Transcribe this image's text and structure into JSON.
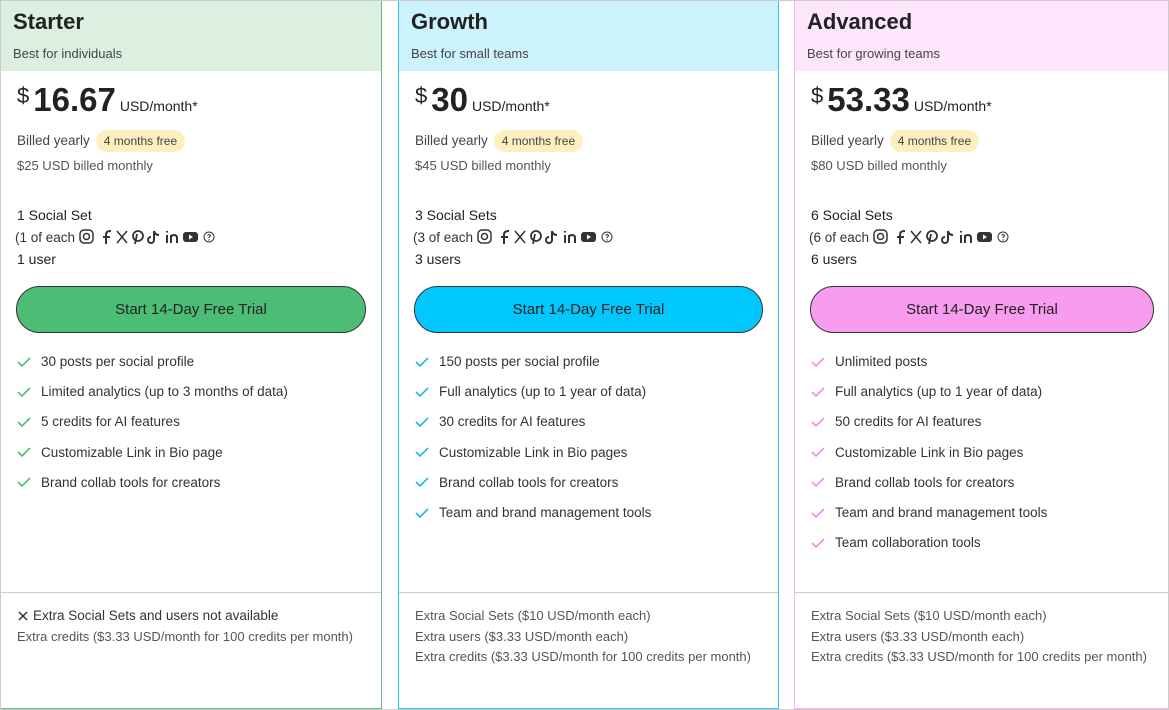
{
  "plans": [
    {
      "name": "Starter",
      "tagline": "Best for individuals",
      "currency": "$",
      "price": "16.67",
      "unit": "USD/month*",
      "billed": "Billed yearly",
      "badge": "4 months free",
      "monthly": "$25 USD billed monthly",
      "sets": "1 Social Set",
      "each": "(1 of each",
      "users": "1 user",
      "button": "Start 14-Day Free Trial",
      "features": [
        "30 posts per social profile",
        "Limited analytics (up to 3 months of data)",
        "5 credits for AI features",
        "Customizable Link in Bio page",
        "Brand collab tools for creators"
      ],
      "extras": [
        "Extra Social Sets and users not available",
        "Extra credits ($3.33 USD/month for 100 credits per month)"
      ]
    },
    {
      "name": "Growth",
      "tagline": "Best for small teams",
      "currency": "$",
      "price": "30",
      "unit": "USD/month*",
      "billed": "Billed yearly",
      "badge": "4 months free",
      "monthly": "$45 USD billed monthly",
      "sets": "3 Social Sets",
      "each": "(3 of each",
      "users": "3 users",
      "button": "Start 14-Day Free Trial",
      "features": [
        "150 posts per social profile",
        "Full analytics (up to 1 year of data)",
        "30 credits for AI features",
        "Customizable Link in Bio pages",
        "Brand collab tools for creators",
        "Team and brand management tools"
      ],
      "extras": [
        "Extra Social Sets ($10 USD/month each)",
        "Extra users ($3.33 USD/month each)",
        "Extra credits ($3.33 USD/month for 100 credits per month)"
      ]
    },
    {
      "name": "Advanced",
      "tagline": "Best for growing teams",
      "currency": "$",
      "price": "53.33",
      "unit": "USD/month*",
      "billed": "Billed yearly",
      "badge": "4 months free",
      "monthly": "$80 USD billed monthly",
      "sets": "6 Social Sets",
      "each": "(6 of each",
      "users": "6 users",
      "button": "Start 14-Day Free Trial",
      "features": [
        "Unlimited posts",
        "Full analytics (up to 1 year of data)",
        "50 credits for AI features",
        "Customizable Link in Bio pages",
        "Brand collab tools for creators",
        "Team and brand management tools",
        "Team collaboration tools"
      ],
      "extras": [
        "Extra Social Sets ($10 USD/month each)",
        "Extra users ($3.33 USD/month each)",
        "Extra credits ($3.33 USD/month for 100 credits per month)"
      ]
    }
  ]
}
